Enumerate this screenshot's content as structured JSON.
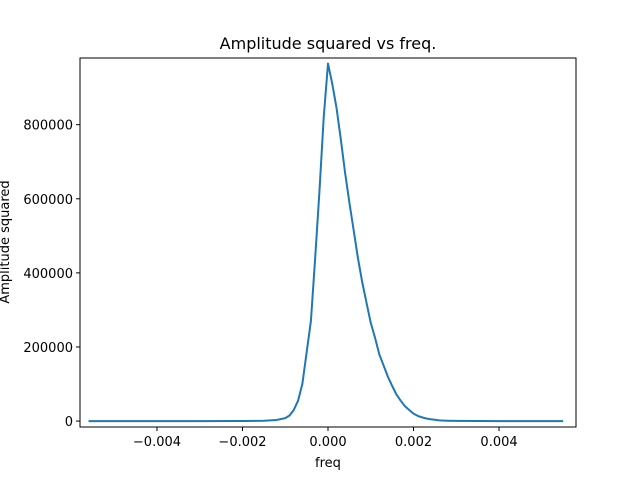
{
  "chart_data": {
    "type": "line",
    "title": "Amplitude squared vs freq.",
    "xlabel": "freq",
    "ylabel": "Amplitude squared",
    "xlim": [
      -0.0058,
      0.0058
    ],
    "ylim": [
      -16000,
      980000
    ],
    "grid": false,
    "x_ticks": [
      {
        "value": -0.004,
        "label": "−0.004"
      },
      {
        "value": -0.002,
        "label": "−0.002"
      },
      {
        "value": 0.0,
        "label": "0.000"
      },
      {
        "value": 0.002,
        "label": "0.002"
      },
      {
        "value": 0.004,
        "label": "0.004"
      }
    ],
    "y_ticks": [
      {
        "value": 0,
        "label": "0"
      },
      {
        "value": 200000,
        "label": "200000"
      },
      {
        "value": 400000,
        "label": "400000"
      },
      {
        "value": 600000,
        "label": "600000"
      },
      {
        "value": 800000,
        "label": "800000"
      }
    ],
    "series": [
      {
        "color": "#1f77b4",
        "x": [
          -0.0056,
          -0.005,
          -0.004,
          -0.003,
          -0.002,
          -0.0015,
          -0.0012,
          -0.001,
          -0.0009,
          -0.0008,
          -0.0007,
          -0.0006,
          -0.0005,
          -0.0004,
          -0.0003,
          -0.0002,
          -0.0001,
          0.0,
          0.0001,
          0.0002,
          0.0003,
          0.0004,
          0.0005,
          0.0006,
          0.0007,
          0.0008,
          0.0009,
          0.001,
          0.0011,
          0.0012,
          0.0013,
          0.0014,
          0.0015,
          0.0016,
          0.0017,
          0.0018,
          0.0019,
          0.002,
          0.0021,
          0.0022,
          0.0023,
          0.0024,
          0.0025,
          0.0026,
          0.0028,
          0.003,
          0.0035,
          0.004,
          0.005,
          0.0055
        ],
        "y": [
          0,
          0,
          0,
          0,
          100,
          1000,
          3000,
          8000,
          15000,
          30000,
          55000,
          100000,
          185000,
          270000,
          440000,
          620000,
          820000,
          965000,
          910000,
          845000,
          760000,
          670000,
          590000,
          515000,
          440000,
          375000,
          320000,
          265000,
          225000,
          180000,
          150000,
          120000,
          95000,
          72000,
          55000,
          40000,
          30000,
          20000,
          14000,
          10000,
          7000,
          5000,
          3500,
          2000,
          1000,
          500,
          100,
          0,
          0,
          0
        ]
      }
    ]
  }
}
